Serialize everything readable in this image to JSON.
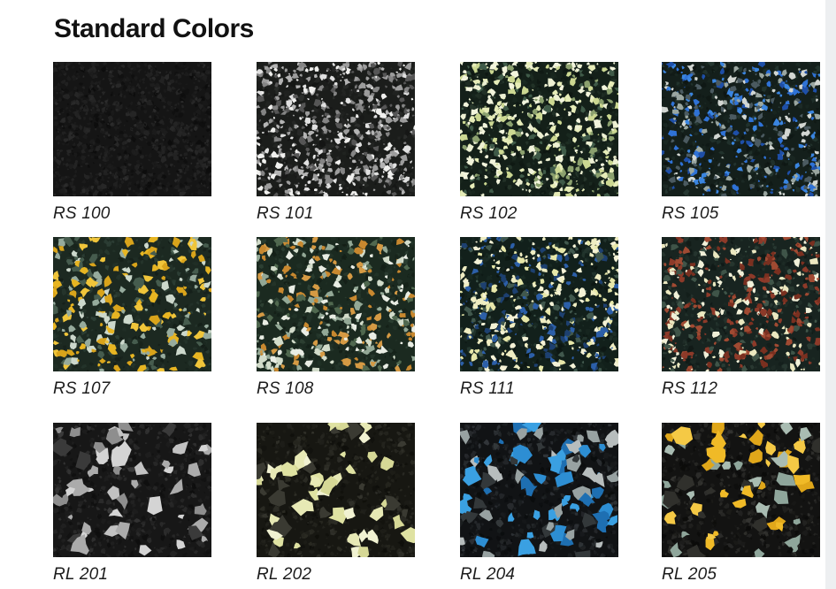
{
  "page": {
    "title": "Standard Colors"
  },
  "swatches": [
    {
      "code": "RS 100",
      "texture": {
        "base": "#151515",
        "mottle": [
          "#1e1e1e",
          "#242424",
          "#0d0d0d",
          "#2a2a2a"
        ],
        "mottle_count": 900,
        "specks": [
          "#2b2b2b",
          "#232323",
          "#1a1a1a"
        ],
        "count": 220,
        "min": 1,
        "max": 2.6
      }
    },
    {
      "code": "RS 101",
      "texture": {
        "base": "#1b1d1b",
        "mottle": [
          "#242624",
          "#141514",
          "#2c2e2c"
        ],
        "mottle_count": 500,
        "specks": [
          "#e0e0e0",
          "#b4b4b4",
          "#848484",
          "#f0f0ee",
          "#565656",
          "#9c9c9c"
        ],
        "count": 560,
        "min": 1,
        "max": 4.6
      }
    },
    {
      "code": "RS 102",
      "texture": {
        "base": "#142019",
        "mottle": [
          "#1c2b22",
          "#0e1712",
          "#27372c"
        ],
        "mottle_count": 450,
        "specks": [
          "#e6ecb8",
          "#edf0d2",
          "#ccd892",
          "#8ba06e",
          "#3f5a48",
          "#f2f4dc"
        ],
        "count": 500,
        "min": 1,
        "max": 5
      }
    },
    {
      "code": "RS 105",
      "texture": {
        "base": "#141f1b",
        "mottle": [
          "#1b2a24",
          "#0e1613",
          "#263832"
        ],
        "mottle_count": 450,
        "specks": [
          "#2f72d6",
          "#1e4fa8",
          "#d2d6d2",
          "#9aa6a0",
          "#4b5a60",
          "#3a85e0"
        ],
        "count": 440,
        "min": 1,
        "max": 4.6
      }
    },
    {
      "code": "RS 107",
      "texture": {
        "base": "#1c2921",
        "mottle": [
          "#24332a",
          "#141e18",
          "#2e4036"
        ],
        "mottle_count": 420,
        "specks": [
          "#e7b522",
          "#d9a41b",
          "#ccd8cc",
          "#96ab9d",
          "#465c4e",
          "#f0c53a"
        ],
        "count": 240,
        "min": 2,
        "max": 6.8
      }
    },
    {
      "code": "RS 108",
      "texture": {
        "base": "#1b2a20",
        "mottle": [
          "#233429",
          "#131e16",
          "#2d4033"
        ],
        "mottle_count": 430,
        "specks": [
          "#d59a44",
          "#c8882f",
          "#d2dcca",
          "#93a896",
          "#e9ede4",
          "#50684f"
        ],
        "count": 330,
        "min": 1.5,
        "max": 5.6
      }
    },
    {
      "code": "RS 111",
      "texture": {
        "base": "#12201b",
        "mottle": [
          "#1a2b24",
          "#0c1511",
          "#253830"
        ],
        "mottle_count": 430,
        "specks": [
          "#efedc2",
          "#e7e7a9",
          "#2c5fa8",
          "#1d4070",
          "#41584d",
          "#f4f2d6"
        ],
        "count": 500,
        "min": 1,
        "max": 5
      }
    },
    {
      "code": "RS 112",
      "texture": {
        "base": "#182420",
        "mottle": [
          "#202e28",
          "#101916",
          "#2b3c34"
        ],
        "mottle_count": 430,
        "specks": [
          "#ebe8c0",
          "#f1f0d8",
          "#8d3a29",
          "#7a3020",
          "#3f5448",
          "#a04a32"
        ],
        "count": 440,
        "min": 1,
        "max": 5
      }
    },
    {
      "code": "RL 201",
      "texture": {
        "base": "#171717",
        "mottle": [
          "#212121",
          "#0f0f0f",
          "#2b2b2b",
          "#333333"
        ],
        "mottle_count": 650,
        "specks": [
          "#ababab",
          "#c2c2c2",
          "#8e8e8e",
          "#d4d4d4",
          "#3a3a3a"
        ],
        "count": 52,
        "min": 4,
        "max": 12
      }
    },
    {
      "code": "RL 202",
      "texture": {
        "base": "#171712",
        "mottle": [
          "#21211b",
          "#0f0f0b",
          "#2b2b24",
          "#33332c"
        ],
        "mottle_count": 650,
        "specks": [
          "#e7e9b5",
          "#dfe2a2",
          "#f1f2d2",
          "#d6d896",
          "#3a3a32"
        ],
        "count": 54,
        "min": 4,
        "max": 12
      }
    },
    {
      "code": "RL 204",
      "texture": {
        "base": "#111315",
        "mottle": [
          "#1b1e20",
          "#0a0c0d",
          "#26292c",
          "#32363a"
        ],
        "mottle_count": 650,
        "specks": [
          "#2d8ed3",
          "#1e6fb2",
          "#b7bdbd",
          "#98a2a2",
          "#3aa0e2",
          "#33383a"
        ],
        "count": 86,
        "min": 4,
        "max": 11
      }
    },
    {
      "code": "RL 205",
      "texture": {
        "base": "#131312",
        "mottle": [
          "#1d1d1b",
          "#0b0b0a",
          "#282826",
          "#343431"
        ],
        "mottle_count": 650,
        "specks": [
          "#f0ba27",
          "#e0a71a",
          "#a9bcb2",
          "#8fa69b",
          "#f5c945",
          "#30302c"
        ],
        "count": 64,
        "min": 4,
        "max": 12
      }
    }
  ]
}
